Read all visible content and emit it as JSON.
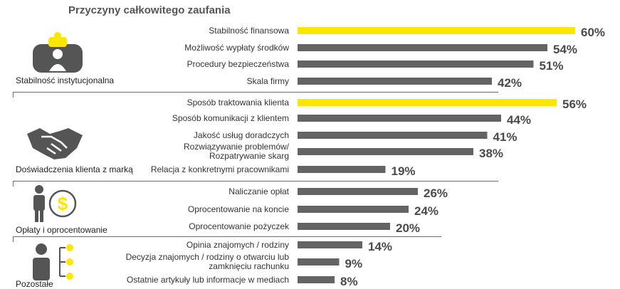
{
  "title": "Przyczyny całkowitego zaufania",
  "groups": [
    {
      "label": "Stabilność instytucjonalna",
      "icon": "institution-icon"
    },
    {
      "label": "Doświadczenia klienta z marką",
      "icon": "handshake-icon"
    },
    {
      "label": "Opłaty i oprocentowanie",
      "icon": "person-dollar-icon"
    },
    {
      "label": "Pozostałe",
      "icon": "person-options-icon"
    }
  ],
  "colors": {
    "highlight": "#FFE600",
    "bar": "#646464",
    "text": "#333333",
    "value": "#4a4a4a",
    "icon": "#555555"
  },
  "chart_data": {
    "type": "bar",
    "orientation": "horizontal",
    "title": "Przyczyny całkowitego zaufania",
    "unit": "%",
    "xlim": [
      0,
      60
    ],
    "grid": false,
    "categories": [
      "Stabilność finansowa",
      "Możliwość wypłaty środków",
      "Procedury bezpieczeństwa",
      "Skala firmy",
      "Sposób traktowania klienta",
      "Sposób komunikacji z klientem",
      "Jakość usług doradczych",
      "Rozwiązywanie problemów/\nRozpatrywanie skarg",
      "Relacja z konkretnymi pracownikami",
      "Naliczanie opłat",
      "Oprocentowanie na koncie",
      "Oprocentowanie pożyczek",
      "Opinia znajomych / rodziny",
      "Decyzja znajomych / rodziny o otwarciu lub\nzamknięciu rachunku",
      "Ostatnie artykuły lub informacje w mediach"
    ],
    "values": [
      60,
      54,
      51,
      42,
      56,
      44,
      41,
      38,
      19,
      26,
      24,
      20,
      14,
      9,
      8
    ],
    "value_labels": [
      "60%",
      "54%",
      "51%",
      "42%",
      "56%",
      "44%",
      "41%",
      "38%",
      "19%",
      "26%",
      "24%",
      "20%",
      "14%",
      "9%",
      "8%"
    ],
    "highlighted": [
      true,
      false,
      false,
      false,
      true,
      false,
      false,
      false,
      false,
      false,
      false,
      false,
      false,
      false,
      false
    ],
    "group_index": [
      0,
      0,
      0,
      0,
      1,
      1,
      1,
      1,
      1,
      2,
      2,
      2,
      3,
      3,
      3
    ]
  }
}
